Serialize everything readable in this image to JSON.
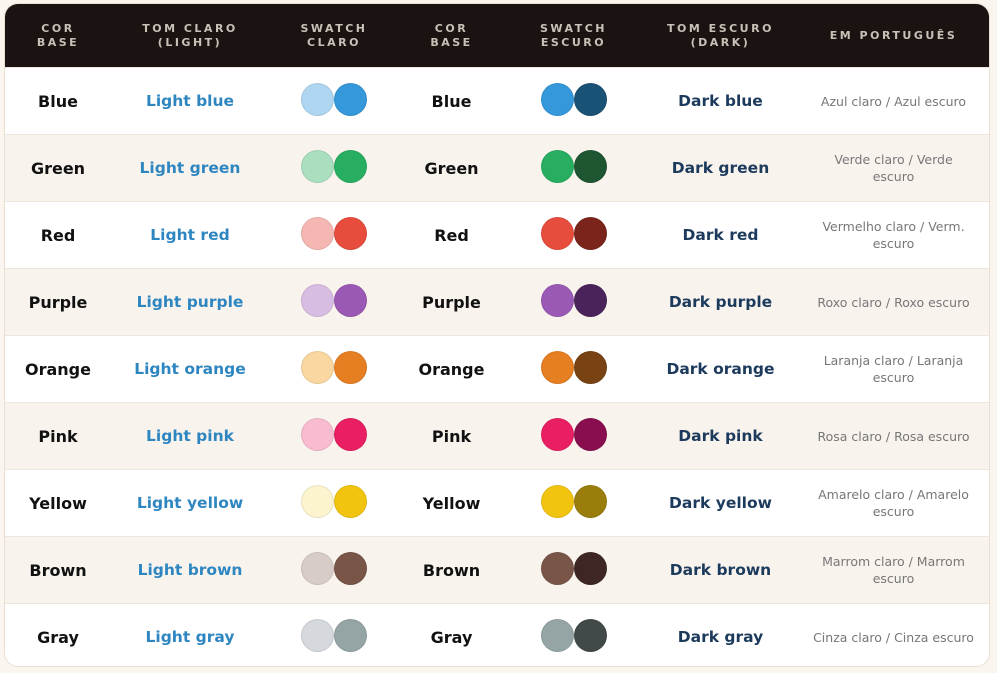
{
  "headers": [
    "COR BASE",
    "TOM CLARO (LIGHT)",
    "SWATCH CLARO",
    "COR BASE",
    "SWATCH ESCURO",
    "TOM ESCURO (DARK)",
    "EM PORTUGUÊS"
  ],
  "rows": [
    {
      "base": "Blue",
      "light": "Light blue",
      "dark": "Dark blue",
      "pt": "Azul claro / Azul escuro",
      "c_light": "#aed6f1",
      "c_base": "#3498db",
      "c_dark": "#1a5276"
    },
    {
      "base": "Green",
      "light": "Light green",
      "dark": "Dark green",
      "pt": "Verde claro / Verde escuro",
      "c_light": "#a9dfbf",
      "c_base": "#27ae60",
      "c_dark": "#1e5631"
    },
    {
      "base": "Red",
      "light": "Light red",
      "dark": "Dark red",
      "pt": "Vermelho claro / Verm. escuro",
      "c_light": "#f5b7b1",
      "c_base": "#e74c3c",
      "c_dark": "#7b241c"
    },
    {
      "base": "Purple",
      "light": "Light purple",
      "dark": "Dark purple",
      "pt": "Roxo claro / Roxo escuro",
      "c_light": "#d7bde2",
      "c_base": "#9b59b6",
      "c_dark": "#4a235a"
    },
    {
      "base": "Orange",
      "light": "Light orange",
      "dark": "Dark orange",
      "pt": "Laranja claro / Laranja escuro",
      "c_light": "#fad7a0",
      "c_base": "#e67e22",
      "c_dark": "#784212"
    },
    {
      "base": "Pink",
      "light": "Light pink",
      "dark": "Dark pink",
      "pt": "Rosa claro / Rosa escuro",
      "c_light": "#f8bbd0",
      "c_base": "#e91e63",
      "c_dark": "#880e4f"
    },
    {
      "base": "Yellow",
      "light": "Light yellow",
      "dark": "Dark yellow",
      "pt": "Amarelo claro / Amarelo escuro",
      "c_light": "#fcf3cf",
      "c_base": "#f1c40f",
      "c_dark": "#9a7d0a"
    },
    {
      "base": "Brown",
      "light": "Light brown",
      "dark": "Dark brown",
      "pt": "Marrom claro / Marrom escuro",
      "c_light": "#d7ccc8",
      "c_base": "#795548",
      "c_dark": "#3e2723"
    },
    {
      "base": "Gray",
      "light": "Light gray",
      "dark": "Dark gray",
      "pt": "Cinza claro / Cinza escuro",
      "c_light": "#d5d8dc",
      "c_base": "#95a5a6",
      "c_dark": "#424949"
    }
  ]
}
